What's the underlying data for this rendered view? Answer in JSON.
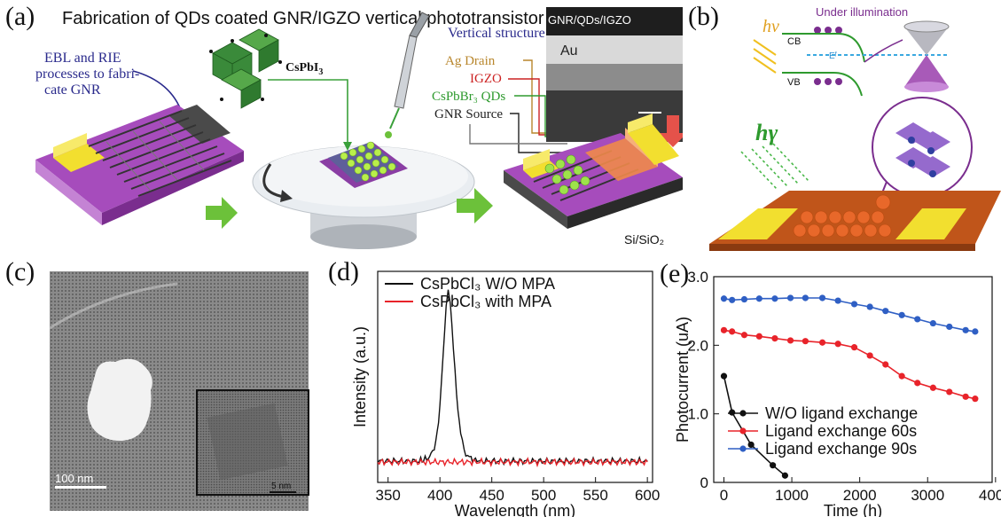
{
  "figure": {
    "panel_a": {
      "label": "(a)",
      "title": "Fabrication of QDs coated GNR/IGZO vertical phototransistor",
      "ebl_text": [
        "EBL and RIE",
        "processes to fabri-",
        "cate GNR"
      ],
      "cspbi3": "CsPbI",
      "cspbi3_sub": "3",
      "vertical_structure": "Vertical structure",
      "sem_label": "GNR/QDs/IGZO",
      "au_label": "Au",
      "layers": [
        {
          "text": "Ag Drain",
          "color": "#b8862c"
        },
        {
          "text": "IGZO",
          "color": "#cc2222"
        },
        {
          "text": "CsPbBr₃ QDs",
          "color": "#2e9a2e"
        },
        {
          "text": "GNR Source",
          "color": "#222222"
        }
      ],
      "substrate": "Si/SiO₂"
    },
    "panel_b": {
      "label": "(b)",
      "under_illumination": "Under illumination",
      "hv": "hν",
      "cb": "CB",
      "vb": "VB",
      "ef": "Eᶠ",
      "hgamma": "hγ"
    },
    "panel_c": {
      "label": "(c)",
      "scale_main": "100 nm",
      "scale_inset": "5 nm"
    },
    "panel_d": {
      "label": "(d)",
      "chart_data": {
        "type": "line",
        "xlabel": "Wavelength (nm)",
        "ylabel": "Intensity (a.u.)",
        "xlim": [
          340,
          605
        ],
        "x_ticks": [
          350,
          400,
          450,
          500,
          550,
          600
        ],
        "series": [
          {
            "name": "CsPbCl₃ W/O MPA",
            "color": "#111111",
            "x": [
              340,
              360,
              380,
              390,
              396,
              400,
              403,
              406,
              408,
              410,
              413,
              416,
              420,
              425,
              430,
              440,
              460,
              480,
              500,
              520,
              540,
              560,
              580,
              600
            ],
            "y": [
              0.05,
              0.05,
              0.05,
              0.07,
              0.15,
              0.35,
              0.65,
              0.92,
              1.0,
              0.93,
              0.7,
              0.42,
              0.2,
              0.09,
              0.06,
              0.05,
              0.05,
              0.05,
              0.05,
              0.05,
              0.05,
              0.05,
              0.05,
              0.05
            ]
          },
          {
            "name": "CsPbCl₃ with MPA",
            "color": "#e8232a",
            "x": [
              340,
              360,
              380,
              400,
              420,
              440,
              460,
              480,
              500,
              520,
              540,
              560,
              580,
              600
            ],
            "y": [
              0.045,
              0.045,
              0.045,
              0.045,
              0.045,
              0.045,
              0.045,
              0.045,
              0.045,
              0.045,
              0.045,
              0.045,
              0.045,
              0.045
            ]
          }
        ]
      }
    },
    "panel_e": {
      "label": "(e)",
      "chart_data": {
        "type": "line",
        "xlabel": "Time (h)",
        "ylabel": "Photocurrent (uA)",
        "xlim": [
          -150,
          3950
        ],
        "ylim": [
          0,
          3.0
        ],
        "x_ticks": [
          0,
          1000,
          2000,
          3000,
          4000
        ],
        "y_ticks": [
          0,
          1.0,
          2.0,
          3.0
        ],
        "y_tick_labels": [
          "0",
          "1.0",
          "2.0",
          "3.0"
        ],
        "series": [
          {
            "name": "W/O ligand exchange",
            "color": "#111111",
            "x": [
              0,
              120,
              400,
              720,
              900
            ],
            "y": [
              1.55,
              1.02,
              0.55,
              0.25,
              0.1
            ]
          },
          {
            "name": "Ligand exchange 60s",
            "color": "#e8232a",
            "x": [
              0,
              120,
              300,
              520,
              750,
              980,
              1200,
              1450,
              1680,
              1920,
              2150,
              2380,
              2620,
              2850,
              3080,
              3320,
              3560,
              3700
            ],
            "y": [
              2.22,
              2.2,
              2.15,
              2.13,
              2.1,
              2.07,
              2.06,
              2.04,
              2.02,
              1.97,
              1.85,
              1.72,
              1.55,
              1.45,
              1.38,
              1.32,
              1.25,
              1.22
            ]
          },
          {
            "name": "Ligand exchange 90s",
            "color": "#2f5fc4",
            "x": [
              0,
              120,
              300,
              520,
              750,
              980,
              1200,
              1450,
              1680,
              1920,
              2150,
              2380,
              2620,
              2850,
              3080,
              3320,
              3560,
              3700
            ],
            "y": [
              2.68,
              2.66,
              2.67,
              2.68,
              2.68,
              2.69,
              2.69,
              2.69,
              2.65,
              2.6,
              2.56,
              2.5,
              2.44,
              2.38,
              2.32,
              2.27,
              2.22,
              2.2
            ]
          }
        ]
      }
    }
  }
}
